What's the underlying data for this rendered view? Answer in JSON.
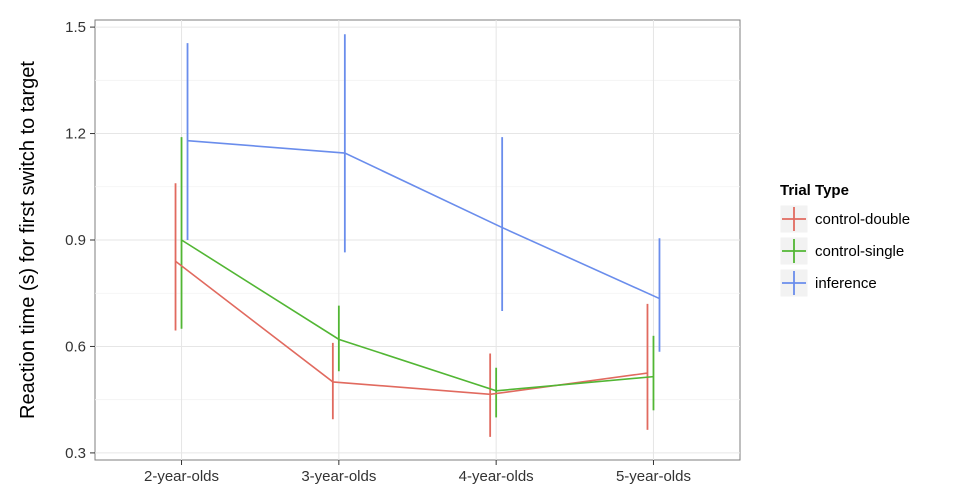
{
  "chart_data": {
    "type": "line",
    "title": "",
    "xlabel": "",
    "ylabel": "Reaction time (s) for first switch to target",
    "categories": [
      "2-year-olds",
      "3-year-olds",
      "4-year-olds",
      "5-year-olds"
    ],
    "ylim": [
      0.28,
      1.52
    ],
    "yticks": [
      "0.3",
      "0.6",
      "0.9",
      "1.2",
      "1.5"
    ],
    "grid": true,
    "legend": {
      "title": "Trial Type",
      "placement": "right"
    },
    "series": [
      {
        "name": "control-double",
        "color": "#E16A5F",
        "values": [
          0.84,
          0.5,
          0.465,
          0.525
        ],
        "ci_low": [
          0.645,
          0.395,
          0.345,
          0.365
        ],
        "ci_high": [
          1.06,
          0.61,
          0.58,
          0.72
        ]
      },
      {
        "name": "control-single",
        "color": "#52B634",
        "values": [
          0.9,
          0.62,
          0.475,
          0.515
        ],
        "ci_low": [
          0.65,
          0.53,
          0.4,
          0.42
        ],
        "ci_high": [
          1.19,
          0.715,
          0.54,
          0.63
        ]
      },
      {
        "name": "inference",
        "color": "#6A8DEC",
        "values": [
          1.18,
          1.145,
          0.935,
          0.735
        ],
        "ci_low": [
          0.9,
          0.865,
          0.7,
          0.585
        ],
        "ci_high": [
          1.455,
          1.48,
          1.19,
          0.905
        ]
      }
    ]
  }
}
